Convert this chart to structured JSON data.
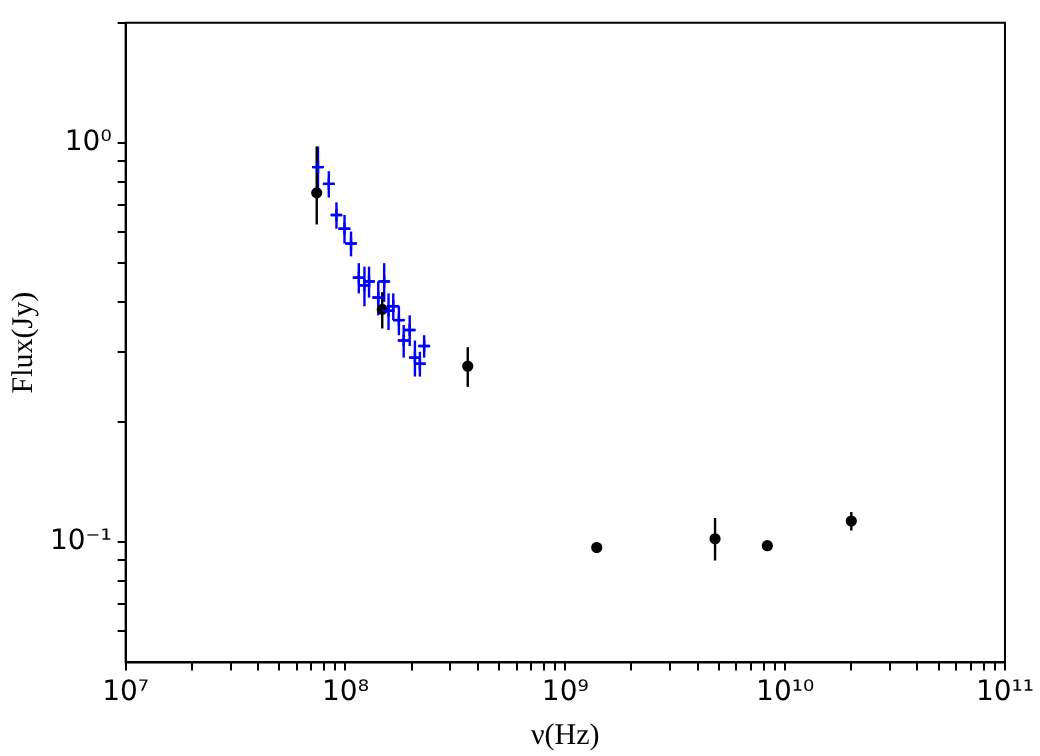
{
  "chart_data": {
    "type": "scatter",
    "xlabel": "ν(Hz)",
    "ylabel": "Flux(Jy)",
    "log": "xy",
    "grid": false,
    "legend": false,
    "xlim": [
      10000000.0,
      100000000000.0
    ],
    "ylim": [
      0.05,
      2
    ],
    "xticks": [
      {
        "value": 10000000.0,
        "label": "10⁷"
      },
      {
        "value": 20000000.0,
        "label": null
      },
      {
        "value": 30000000.0,
        "label": null
      },
      {
        "value": 40000000.0,
        "label": null
      },
      {
        "value": 50000000.0,
        "label": null
      },
      {
        "value": 60000000.0,
        "label": null
      },
      {
        "value": 70000000.0,
        "label": null
      },
      {
        "value": 80000000.0,
        "label": null
      },
      {
        "value": 90000000.0,
        "label": null
      },
      {
        "value": 100000000.0,
        "label": "10⁸"
      },
      {
        "value": 200000000.0,
        "label": null
      },
      {
        "value": 300000000.0,
        "label": null
      },
      {
        "value": 400000000.0,
        "label": null
      },
      {
        "value": 500000000.0,
        "label": null
      },
      {
        "value": 600000000.0,
        "label": null
      },
      {
        "value": 700000000.0,
        "label": null
      },
      {
        "value": 800000000.0,
        "label": null
      },
      {
        "value": 900000000.0,
        "label": null
      },
      {
        "value": 1000000000.0,
        "label": "10⁹"
      },
      {
        "value": 2000000000.0,
        "label": null
      },
      {
        "value": 3000000000.0,
        "label": null
      },
      {
        "value": 4000000000.0,
        "label": null
      },
      {
        "value": 5000000000.0,
        "label": null
      },
      {
        "value": 6000000000.0,
        "label": null
      },
      {
        "value": 7000000000.0,
        "label": null
      },
      {
        "value": 8000000000.0,
        "label": null
      },
      {
        "value": 9000000000.0,
        "label": null
      },
      {
        "value": 10000000000.0,
        "label": "10¹⁰"
      },
      {
        "value": 20000000000.0,
        "label": null
      },
      {
        "value": 30000000000.0,
        "label": null
      },
      {
        "value": 40000000000.0,
        "label": null
      },
      {
        "value": 50000000000.0,
        "label": null
      },
      {
        "value": 60000000000.0,
        "label": null
      },
      {
        "value": 70000000000.0,
        "label": null
      },
      {
        "value": 80000000000.0,
        "label": null
      },
      {
        "value": 90000000000.0,
        "label": null
      },
      {
        "value": 100000000000.0,
        "label": "10¹¹"
      }
    ],
    "yticks": [
      {
        "value": 0.06,
        "label": null
      },
      {
        "value": 0.07,
        "label": null
      },
      {
        "value": 0.08,
        "label": null
      },
      {
        "value": 0.09,
        "label": null
      },
      {
        "value": 0.1,
        "label": "10⁻¹"
      },
      {
        "value": 0.2,
        "label": null
      },
      {
        "value": 0.3,
        "label": null
      },
      {
        "value": 0.4,
        "label": null
      },
      {
        "value": 0.5,
        "label": null
      },
      {
        "value": 0.6,
        "label": null
      },
      {
        "value": 0.7,
        "label": null
      },
      {
        "value": 0.8,
        "label": null
      },
      {
        "value": 0.9,
        "label": null
      },
      {
        "value": 1,
        "label": "10⁰"
      },
      {
        "value": 2,
        "label": null
      }
    ],
    "series": [
      {
        "color": "#0000ff",
        "marker": "cross",
        "x": [
          75000000.0,
          84000000.0,
          91000000.0,
          99000000.0,
          106000000.0,
          115000000.0,
          122000000.0,
          128000000.0,
          141000000.0,
          150000000.0,
          157000000.0,
          165000000.0,
          175000000.0,
          184000000.0,
          196000000.0,
          207000000.0,
          218000000.0,
          228000000.0
        ],
        "values": [
          0.87,
          0.79,
          0.66,
          0.61,
          0.56,
          0.46,
          0.44,
          0.45,
          0.41,
          0.45,
          0.38,
          0.39,
          0.36,
          0.32,
          0.34,
          0.29,
          0.28,
          0.31
        ],
        "errors": [
          0.11,
          0.06,
          0.05,
          0.05,
          0.04,
          0.04,
          0.05,
          0.04,
          0.04,
          0.05,
          0.04,
          0.03,
          0.03,
          0.03,
          0.03,
          0.03,
          0.02,
          0.02
        ],
        "xerrors": [
          4000000.0,
          5000000.0,
          5000000.0,
          6000000.0,
          6000000.0,
          7000000.0,
          7000000.0,
          7000000.0,
          8000000.0,
          8000000.0,
          9000000.0,
          9000000.0,
          10000000.0,
          10000000.0,
          11000000.0,
          12000000.0,
          12000000.0,
          13000000.0
        ]
      },
      {
        "color": "#000000",
        "marker": "circle",
        "x": [
          74000000.0,
          147000000.0,
          360000000.0,
          1390000000.0,
          4800000000.0,
          8300000000.0,
          20000000000.0
        ],
        "values": [
          0.75,
          0.383,
          0.276,
          0.097,
          0.102,
          0.098,
          0.113
        ],
        "errors": [
          [
            0.625,
            0.98
          ],
          0.04,
          [
            0.245,
            0.308
          ],
          0.003,
          [
            0.09,
            0.115
          ],
          0.002,
          [
            0.107,
            0.119
          ]
        ]
      }
    ]
  }
}
